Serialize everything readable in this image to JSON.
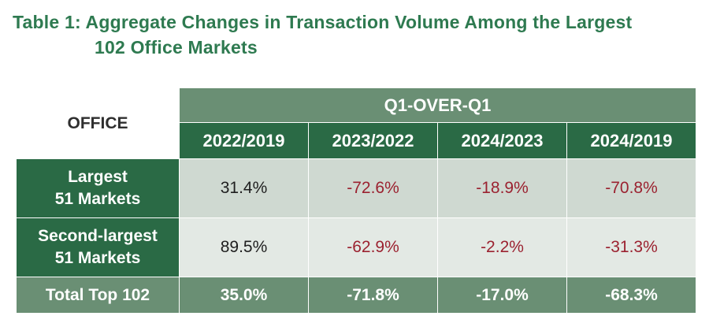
{
  "title": {
    "line1": "Table 1: Aggregate Changes in Transaction Volume Among the Largest",
    "line2": "102 Office Markets"
  },
  "table": {
    "corner_label": "OFFICE",
    "group_header": "Q1-OVER-Q1",
    "columns": [
      "2022/2019",
      "2023/2022",
      "2024/2023",
      "2024/2019"
    ],
    "rows": [
      {
        "label_line1": "Largest",
        "label_line2": "51 Markets",
        "values": [
          "31.4%",
          "-72.6%",
          "-18.9%",
          "-70.8%"
        ]
      },
      {
        "label_line1": "Second-largest",
        "label_line2": "51 Markets",
        "values": [
          "89.5%",
          "-62.9%",
          "-2.2%",
          "-31.3%"
        ]
      }
    ],
    "total_row": {
      "label": "Total Top 102",
      "values": [
        "35.0%",
        "-71.8%",
        "-17.0%",
        "-68.3%"
      ]
    }
  },
  "colors": {
    "title": "#2e7a50",
    "dark_green": "#2a6a45",
    "mid_green": "#6a8f74",
    "negative_text": "#9b2230"
  }
}
